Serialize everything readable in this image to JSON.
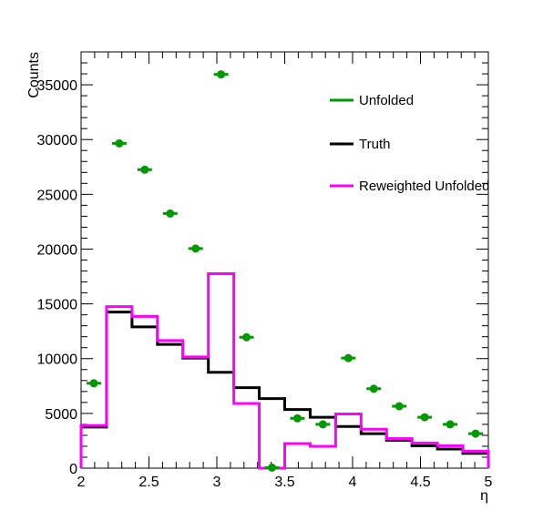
{
  "chart_data": {
    "type": "line",
    "title": "",
    "xlabel": "η",
    "ylabel": "Counts",
    "xlim": [
      2,
      5
    ],
    "ylim": [
      0,
      38000
    ],
    "grid": false,
    "legend_position": "top-right",
    "x_ticks": [
      "2",
      "2.5",
      "3",
      "3.5",
      "4",
      "4.5",
      "5"
    ],
    "y_ticks": [
      "0",
      "5000",
      "10000",
      "15000",
      "20000",
      "25000",
      "30000",
      "35000"
    ],
    "bin_edges": [
      2.0,
      2.1875,
      2.375,
      2.5625,
      2.75,
      2.9375,
      3.125,
      3.3125,
      3.5,
      3.6875,
      3.875,
      4.0625,
      4.25,
      4.4375,
      4.625,
      4.8125,
      5.0
    ],
    "series": [
      {
        "name": "Unfolded",
        "style": "points",
        "color": "#009900",
        "values": [
          7750,
          29650,
          27250,
          23250,
          20050,
          35950,
          11950,
          50,
          4550,
          4000,
          10050,
          7250,
          5650,
          4650,
          4000,
          3150
        ]
      },
      {
        "name": "Truth",
        "style": "step",
        "color": "#000000",
        "values": [
          3750,
          14250,
          12900,
          11300,
          10050,
          8750,
          7350,
          6350,
          5350,
          4650,
          3800,
          3150,
          2550,
          2050,
          1750,
          1350
        ]
      },
      {
        "name": "Reweighted Unfolded",
        "style": "step",
        "color": "#ff00ff",
        "values": [
          3900,
          14750,
          13850,
          11650,
          10150,
          17750,
          5900,
          0,
          2250,
          2000,
          4950,
          3550,
          2700,
          2300,
          2050,
          1550
        ]
      }
    ]
  }
}
